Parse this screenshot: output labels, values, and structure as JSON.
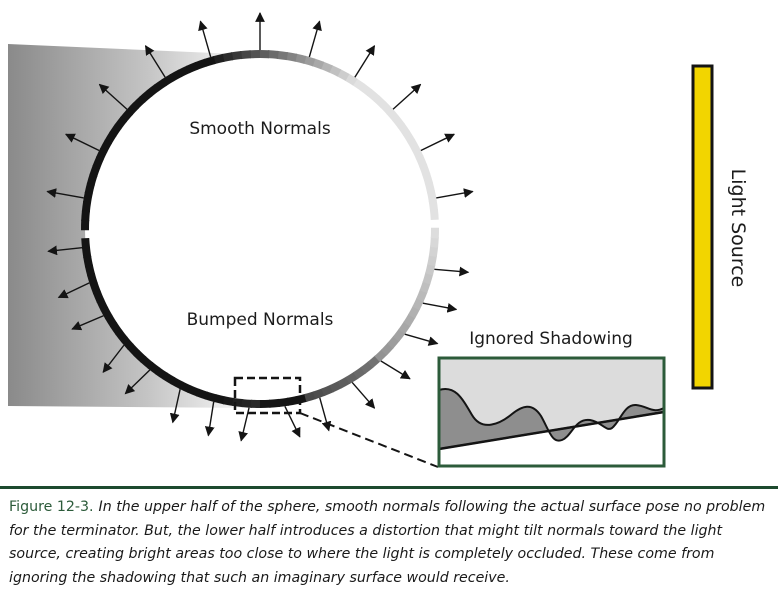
{
  "diagram": {
    "labels": {
      "smooth_normals": "Smooth Normals",
      "bumped_normals": "Bumped Normals",
      "ignored_shadowing": "Ignored Shadowing",
      "light_source": "Light Source"
    },
    "colors": {
      "light_source_fill": "#f2d500",
      "inset_border": "#2c5b3a",
      "shadow_gradient_dark": "#8a8a8a",
      "ring_dark": "#141414",
      "ring_light": "#e2e2e2"
    }
  },
  "caption": {
    "figure_label": "Figure 12-3.",
    "text": "In the upper half of the sphere, smooth normals following the actual surface pose no problem for the terminator. But, the lower half introduces a distortion that might tilt normals toward the light source, creating bright areas too close to where the light is completely occluded. These come from ignoring the shadowing that such an imaginary surface would receive."
  }
}
